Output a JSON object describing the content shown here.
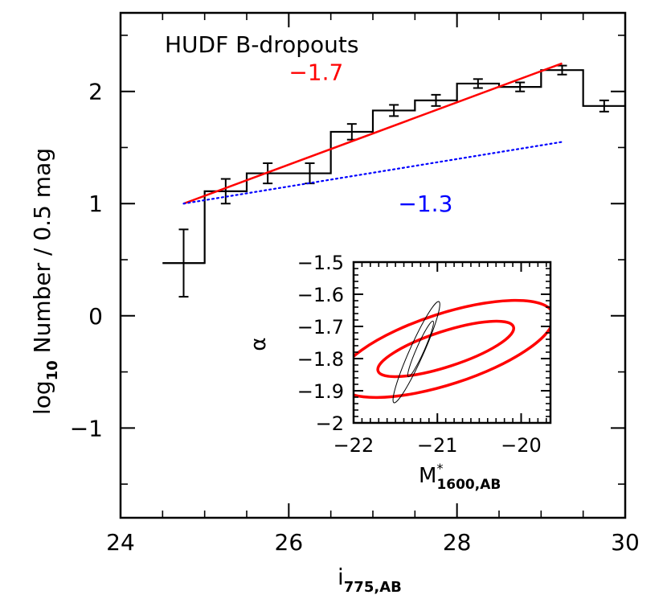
{
  "chart_data": [
    {
      "type": "line",
      "title": "HUDF B-dropouts",
      "xlabel": "i775,AB",
      "xlabel_main": "i",
      "xlabel_sub": "775,AB",
      "ylabel": "log10 Number / 0.5 mag",
      "ylabel_prefix": "log",
      "ylabel_sub": "10",
      "ylabel_rest": " Number / 0.5 mag",
      "xlim": [
        24,
        30
      ],
      "ylim": [
        -1.8,
        2.7
      ],
      "xticks": [
        24,
        26,
        28,
        30
      ],
      "yticks": [
        -1,
        0,
        1,
        2
      ],
      "ytick_labels": [
        "−1",
        "0",
        "1",
        "2"
      ],
      "histogram": {
        "bin_edges": [
          24.5,
          25.0,
          25.5,
          26.0,
          26.5,
          27.0,
          27.5,
          28.0,
          28.5,
          29.0,
          29.5,
          30.0
        ],
        "values": [
          0.47,
          1.11,
          1.27,
          1.27,
          1.64,
          1.83,
          1.92,
          2.07,
          2.04,
          2.19,
          1.87
        ]
      },
      "error_bars": {
        "x": [
          24.75,
          25.25,
          25.75,
          26.25,
          26.75,
          27.25,
          27.75,
          28.25,
          28.75,
          29.25,
          29.75
        ],
        "y": [
          0.47,
          1.11,
          1.27,
          1.27,
          1.64,
          1.83,
          1.92,
          2.07,
          2.04,
          2.19,
          1.87
        ],
        "yerr": [
          0.3,
          0.11,
          0.09,
          0.09,
          0.07,
          0.05,
          0.05,
          0.04,
          0.04,
          0.04,
          0.05
        ]
      },
      "fits": [
        {
          "slope_label": "−1.7",
          "x": [
            24.75,
            29.25
          ],
          "y": [
            1.0,
            2.25
          ],
          "color": "#ff0000",
          "style": "solid"
        },
        {
          "slope_label": "−1.3",
          "x": [
            24.75,
            29.25
          ],
          "y": [
            1.0,
            1.55
          ],
          "color": "#0000ff",
          "style": "dotted"
        }
      ],
      "annotations": [
        {
          "text": "−1.7",
          "x": 26.0,
          "y": 2.1,
          "color": "#ff0000"
        },
        {
          "text": "−1.3",
          "x": 27.3,
          "y": 0.93,
          "color": "#0000ff"
        }
      ]
    },
    {
      "type": "line",
      "xlabel": "M*1600,AB",
      "xlabel_main": "M",
      "xlabel_sup": "*",
      "xlabel_sub": "1600,AB",
      "ylabel": "α",
      "xlim": [
        -22,
        -19.65
      ],
      "ylim": [
        -2.0,
        -1.5
      ],
      "xticks": [
        -22,
        -21,
        -20
      ],
      "xtick_labels": [
        "−22",
        "−21",
        "−20"
      ],
      "yticks": [
        -2.0,
        -1.9,
        -1.8,
        -1.7,
        -1.6,
        -1.5
      ],
      "ytick_labels": [
        "−2",
        "−1.9",
        "−1.8",
        "−1.7",
        "−1.6",
        "−1.5"
      ],
      "contours": [
        {
          "color": "#ff0000",
          "level": "inner",
          "center": [
            -20.9,
            -1.77
          ],
          "semi_major": 0.85,
          "semi_minor": 0.055
        },
        {
          "color": "#ff0000",
          "level": "outer",
          "center": [
            -20.9,
            -1.77
          ],
          "semi_major": 1.35,
          "semi_minor": 0.11
        },
        {
          "color": "#000000",
          "level": "inner",
          "center": [
            -21.2,
            -1.77
          ],
          "semi_major": 0.11,
          "semi_minor": 0.022
        },
        {
          "color": "#000000",
          "level": "outer",
          "center": [
            -21.25,
            -1.78
          ],
          "semi_major": 0.2,
          "semi_minor": 0.04
        }
      ]
    }
  ]
}
